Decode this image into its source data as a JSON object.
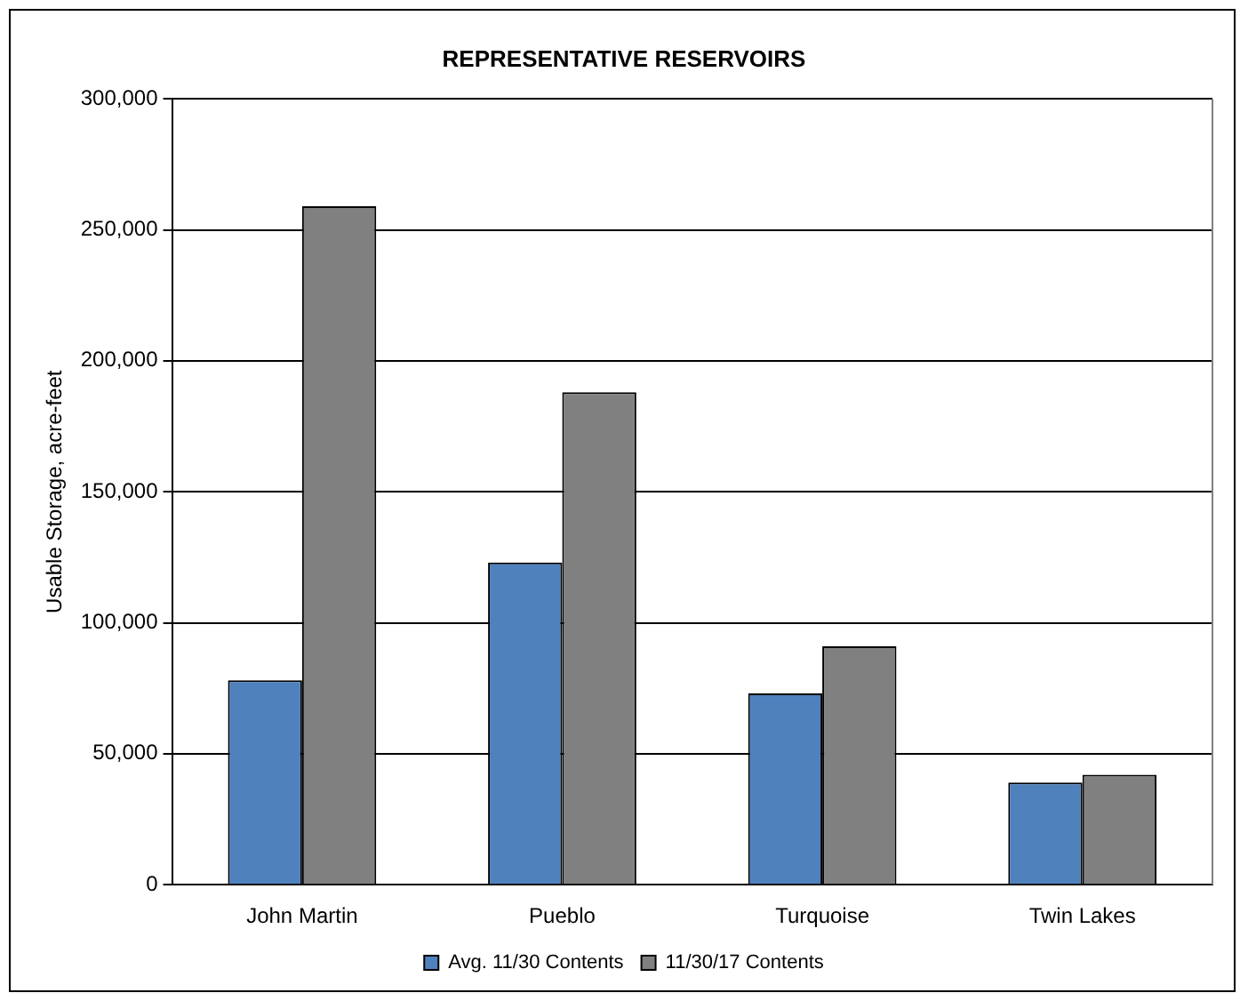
{
  "chart_data": {
    "type": "bar",
    "title": "REPRESENTATIVE RESERVOIRS",
    "ylabel": "Usable Storage, acre-feet",
    "categories": [
      "John Martin",
      "Pueblo",
      "Turquoise",
      "Twin Lakes"
    ],
    "series": [
      {
        "name": "Avg. 11/30 Contents",
        "color": "#4f81bd",
        "values": [
          78000,
          123000,
          73000,
          39000
        ]
      },
      {
        "name": "11/30/17 Contents",
        "color": "#808080",
        "values": [
          259000,
          188000,
          91000,
          42000
        ]
      }
    ],
    "ylim": [
      0,
      300000
    ],
    "yticks": [
      {
        "value": 0,
        "label": "0"
      },
      {
        "value": 50000,
        "label": "50,000"
      },
      {
        "value": 100000,
        "label": "100,000"
      },
      {
        "value": 150000,
        "label": "150,000"
      },
      {
        "value": 200000,
        "label": "200,000"
      },
      {
        "value": 250000,
        "label": "250,000"
      },
      {
        "value": 300000,
        "label": "300,000"
      }
    ],
    "grid": "y",
    "legend": "bottom"
  }
}
